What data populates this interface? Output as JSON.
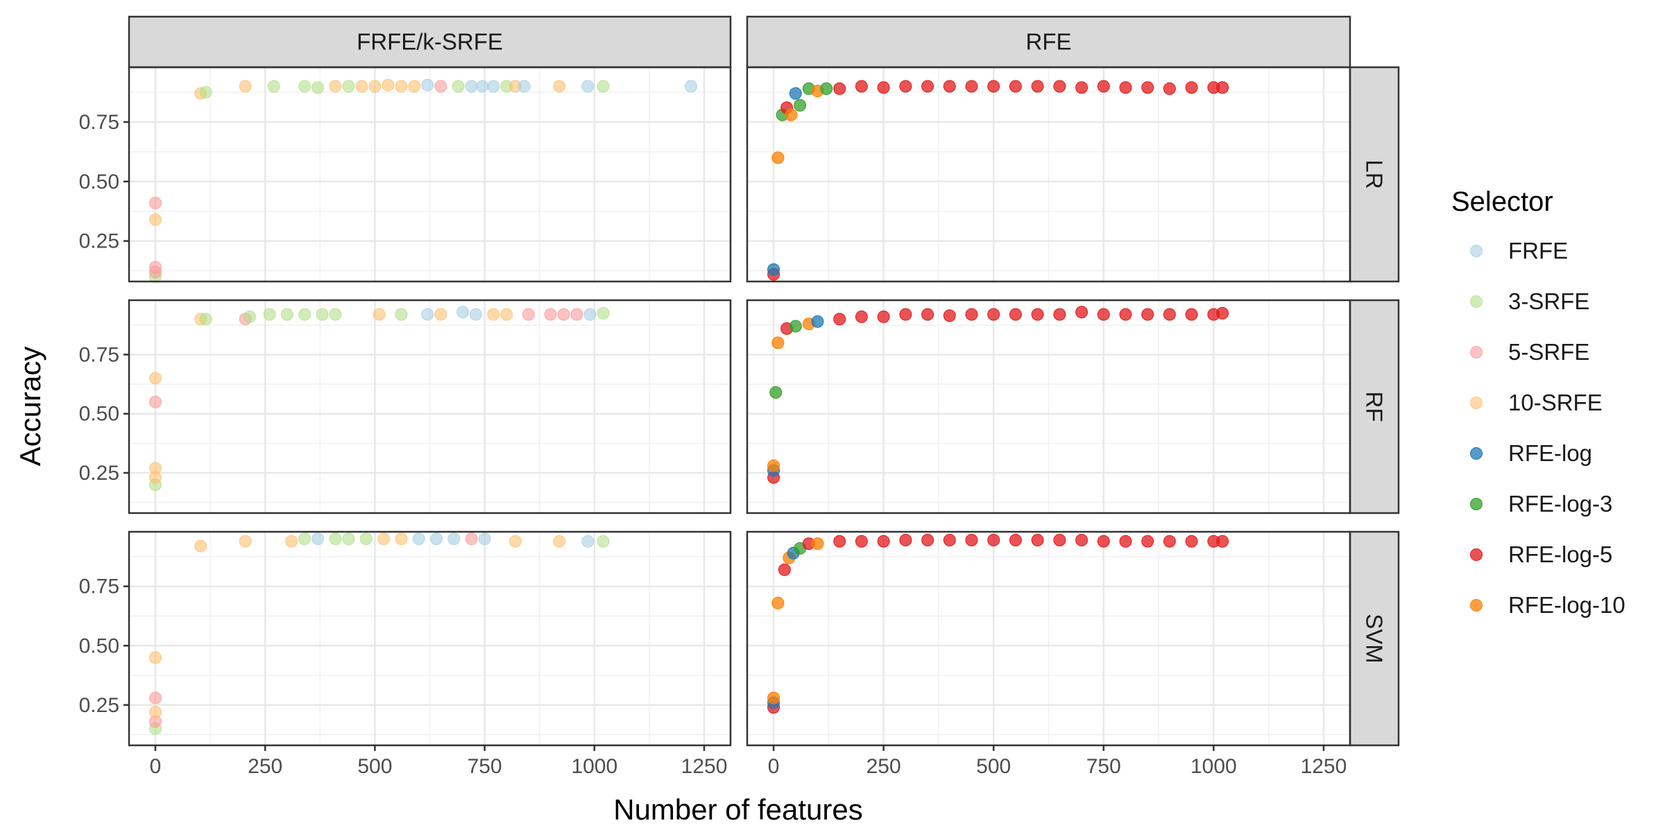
{
  "chart_data": {
    "type": "scatter",
    "xlabel": "Number of features",
    "ylabel": "Accuracy",
    "xlim": [
      -60,
      1310
    ],
    "ylim": [
      0.08,
      0.98
    ],
    "x_ticks": [
      0,
      250,
      500,
      750,
      1000,
      1250
    ],
    "x_tick_labels": [
      "0",
      "250",
      "500",
      "750",
      "1000",
      "1250"
    ],
    "y_ticks": [
      0.25,
      0.5,
      0.75
    ],
    "y_tick_labels": [
      "0.25",
      "0.50",
      "0.75"
    ],
    "grid": true,
    "legend_title": "Selector",
    "legend_position": "right",
    "columns": [
      "FRFE/k-SRFE",
      "RFE"
    ],
    "rows": [
      "LR",
      "RF",
      "SVM"
    ],
    "series": [
      {
        "name": "FRFE",
        "color": "#a6cee3"
      },
      {
        "name": "3-SRFE",
        "color": "#b2df8a"
      },
      {
        "name": "5-SRFE",
        "color": "#fb9a99"
      },
      {
        "name": "10-SRFE",
        "color": "#fdbf6f"
      },
      {
        "name": "RFE-log",
        "color": "#1f78b4"
      },
      {
        "name": "RFE-log-3",
        "color": "#33a02c"
      },
      {
        "name": "RFE-log-5",
        "color": "#e31a1c"
      },
      {
        "name": "RFE-log-10",
        "color": "#ff7f00"
      }
    ],
    "panels": [
      {
        "col": 0,
        "row": 0,
        "points": [
          [
            0,
            0.1,
            1
          ],
          [
            0,
            0.12,
            2
          ],
          [
            0,
            0.14,
            2
          ],
          [
            0,
            0.34,
            3
          ],
          [
            0,
            0.41,
            2
          ],
          [
            103,
            0.87,
            3
          ],
          [
            115,
            0.875,
            1
          ],
          [
            205,
            0.9,
            3
          ],
          [
            270,
            0.9,
            1
          ],
          [
            340,
            0.9,
            1
          ],
          [
            370,
            0.895,
            1
          ],
          [
            410,
            0.9,
            3
          ],
          [
            440,
            0.9,
            1
          ],
          [
            470,
            0.9,
            3
          ],
          [
            500,
            0.9,
            3
          ],
          [
            530,
            0.905,
            3
          ],
          [
            560,
            0.9,
            3
          ],
          [
            590,
            0.9,
            3
          ],
          [
            620,
            0.905,
            0
          ],
          [
            650,
            0.9,
            2
          ],
          [
            690,
            0.9,
            1
          ],
          [
            720,
            0.9,
            0
          ],
          [
            745,
            0.9,
            0
          ],
          [
            770,
            0.9,
            0
          ],
          [
            800,
            0.9,
            1
          ],
          [
            820,
            0.9,
            3
          ],
          [
            840,
            0.9,
            0
          ],
          [
            920,
            0.9,
            3
          ],
          [
            985,
            0.9,
            0
          ],
          [
            1020,
            0.9,
            1
          ],
          [
            1220,
            0.9,
            0
          ]
        ]
      },
      {
        "col": 0,
        "row": 1,
        "points": [
          [
            0,
            0.2,
            1
          ],
          [
            0,
            0.23,
            3
          ],
          [
            0,
            0.27,
            3
          ],
          [
            0,
            0.55,
            2
          ],
          [
            0,
            0.65,
            3
          ],
          [
            103,
            0.9,
            3
          ],
          [
            115,
            0.9,
            1
          ],
          [
            205,
            0.9,
            2
          ],
          [
            215,
            0.91,
            1
          ],
          [
            260,
            0.92,
            1
          ],
          [
            300,
            0.92,
            1
          ],
          [
            340,
            0.92,
            1
          ],
          [
            380,
            0.92,
            1
          ],
          [
            410,
            0.92,
            1
          ],
          [
            510,
            0.92,
            3
          ],
          [
            560,
            0.92,
            1
          ],
          [
            620,
            0.92,
            0
          ],
          [
            650,
            0.92,
            3
          ],
          [
            700,
            0.93,
            0
          ],
          [
            730,
            0.92,
            0
          ],
          [
            770,
            0.92,
            3
          ],
          [
            800,
            0.92,
            3
          ],
          [
            850,
            0.92,
            2
          ],
          [
            900,
            0.92,
            2
          ],
          [
            930,
            0.92,
            2
          ],
          [
            960,
            0.92,
            2
          ],
          [
            990,
            0.92,
            0
          ],
          [
            1020,
            0.925,
            1
          ]
        ]
      },
      {
        "col": 0,
        "row": 2,
        "points": [
          [
            0,
            0.15,
            1
          ],
          [
            0,
            0.18,
            2
          ],
          [
            0,
            0.22,
            3
          ],
          [
            0,
            0.28,
            2
          ],
          [
            0,
            0.45,
            3
          ],
          [
            103,
            0.92,
            3
          ],
          [
            205,
            0.94,
            3
          ],
          [
            310,
            0.94,
            3
          ],
          [
            340,
            0.95,
            1
          ],
          [
            370,
            0.95,
            0
          ],
          [
            410,
            0.95,
            1
          ],
          [
            440,
            0.95,
            1
          ],
          [
            480,
            0.95,
            1
          ],
          [
            520,
            0.95,
            3
          ],
          [
            560,
            0.95,
            3
          ],
          [
            600,
            0.95,
            0
          ],
          [
            640,
            0.95,
            0
          ],
          [
            680,
            0.95,
            0
          ],
          [
            720,
            0.95,
            2
          ],
          [
            750,
            0.95,
            0
          ],
          [
            820,
            0.94,
            3
          ],
          [
            920,
            0.94,
            3
          ],
          [
            985,
            0.94,
            0
          ],
          [
            1020,
            0.94,
            1
          ]
        ]
      },
      {
        "col": 1,
        "row": 0,
        "points": [
          [
            0,
            0.11,
            6
          ],
          [
            0,
            0.13,
            4
          ],
          [
            10,
            0.6,
            7
          ],
          [
            20,
            0.78,
            5
          ],
          [
            30,
            0.81,
            6
          ],
          [
            40,
            0.78,
            7
          ],
          [
            50,
            0.87,
            4
          ],
          [
            60,
            0.82,
            5
          ],
          [
            80,
            0.89,
            5
          ],
          [
            100,
            0.88,
            7
          ],
          [
            120,
            0.89,
            5
          ],
          [
            150,
            0.89,
            6
          ],
          [
            200,
            0.9,
            6
          ],
          [
            250,
            0.895,
            6
          ],
          [
            300,
            0.9,
            6
          ],
          [
            350,
            0.9,
            6
          ],
          [
            400,
            0.9,
            6
          ],
          [
            450,
            0.9,
            6
          ],
          [
            500,
            0.9,
            6
          ],
          [
            550,
            0.9,
            6
          ],
          [
            600,
            0.9,
            6
          ],
          [
            650,
            0.9,
            6
          ],
          [
            700,
            0.895,
            6
          ],
          [
            750,
            0.9,
            6
          ],
          [
            800,
            0.895,
            6
          ],
          [
            850,
            0.895,
            6
          ],
          [
            900,
            0.89,
            6
          ],
          [
            950,
            0.895,
            6
          ],
          [
            1000,
            0.895,
            6
          ],
          [
            1020,
            0.895,
            6
          ]
        ]
      },
      {
        "col": 1,
        "row": 1,
        "points": [
          [
            0,
            0.23,
            6
          ],
          [
            0,
            0.26,
            4
          ],
          [
            0,
            0.28,
            7
          ],
          [
            5,
            0.59,
            5
          ],
          [
            10,
            0.8,
            7
          ],
          [
            30,
            0.86,
            6
          ],
          [
            50,
            0.87,
            5
          ],
          [
            80,
            0.88,
            7
          ],
          [
            100,
            0.89,
            4
          ],
          [
            150,
            0.9,
            6
          ],
          [
            200,
            0.91,
            6
          ],
          [
            250,
            0.91,
            6
          ],
          [
            300,
            0.92,
            6
          ],
          [
            350,
            0.92,
            6
          ],
          [
            400,
            0.915,
            6
          ],
          [
            450,
            0.92,
            6
          ],
          [
            500,
            0.92,
            6
          ],
          [
            550,
            0.92,
            6
          ],
          [
            600,
            0.92,
            6
          ],
          [
            650,
            0.92,
            6
          ],
          [
            700,
            0.93,
            6
          ],
          [
            750,
            0.92,
            6
          ],
          [
            800,
            0.92,
            6
          ],
          [
            850,
            0.92,
            6
          ],
          [
            900,
            0.92,
            6
          ],
          [
            950,
            0.92,
            6
          ],
          [
            1000,
            0.92,
            6
          ],
          [
            1020,
            0.925,
            6
          ]
        ]
      },
      {
        "col": 1,
        "row": 2,
        "points": [
          [
            0,
            0.24,
            6
          ],
          [
            0,
            0.26,
            4
          ],
          [
            0,
            0.28,
            7
          ],
          [
            10,
            0.68,
            7
          ],
          [
            25,
            0.82,
            6
          ],
          [
            35,
            0.87,
            7
          ],
          [
            45,
            0.89,
            4
          ],
          [
            60,
            0.91,
            5
          ],
          [
            80,
            0.93,
            6
          ],
          [
            100,
            0.93,
            7
          ],
          [
            150,
            0.94,
            6
          ],
          [
            200,
            0.94,
            6
          ],
          [
            250,
            0.94,
            6
          ],
          [
            300,
            0.945,
            6
          ],
          [
            350,
            0.945,
            6
          ],
          [
            400,
            0.945,
            6
          ],
          [
            450,
            0.945,
            6
          ],
          [
            500,
            0.945,
            6
          ],
          [
            550,
            0.945,
            6
          ],
          [
            600,
            0.945,
            6
          ],
          [
            650,
            0.945,
            6
          ],
          [
            700,
            0.945,
            6
          ],
          [
            750,
            0.94,
            6
          ],
          [
            800,
            0.94,
            6
          ],
          [
            850,
            0.94,
            6
          ],
          [
            900,
            0.94,
            6
          ],
          [
            950,
            0.94,
            6
          ],
          [
            1000,
            0.94,
            6
          ],
          [
            1020,
            0.94,
            6
          ]
        ]
      }
    ]
  }
}
